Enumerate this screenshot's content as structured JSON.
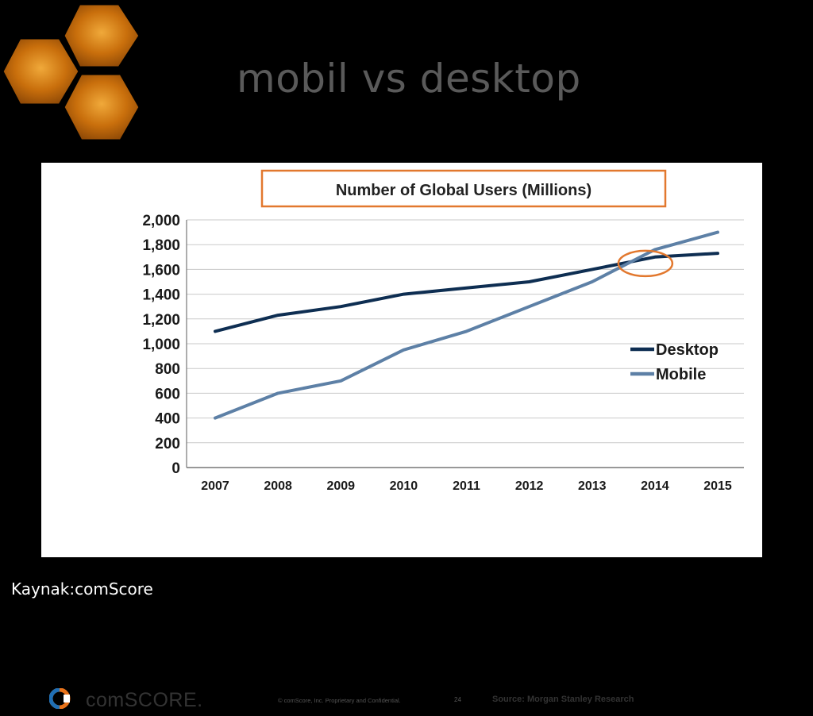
{
  "slide": {
    "title": "mobil vs desktop",
    "caption": "Kaynak:comScore"
  },
  "colors": {
    "hex_fill": "#d07f10",
    "desktop_line": "#0e2e52",
    "mobile_line": "#5d80a6",
    "highlight_circle": "#e2782e",
    "title_box_border": "#e2782e"
  },
  "chart_data": {
    "type": "line",
    "title": "Number of Global Users (Millions)",
    "xlabel": "",
    "ylabel": "",
    "categories": [
      "2007",
      "2008",
      "2009",
      "2010",
      "2011",
      "2012",
      "2013",
      "2014",
      "2015"
    ],
    "ylim": [
      0,
      2000
    ],
    "yticks": [
      0,
      200,
      400,
      600,
      800,
      1000,
      1200,
      1400,
      1600,
      1800,
      2000
    ],
    "ytick_labels": [
      "0",
      "200",
      "400",
      "600",
      "800",
      "1,000",
      "1,200",
      "1,400",
      "1,600",
      "1,800",
      "2,000"
    ],
    "series": [
      {
        "name": "Desktop",
        "values": [
          1100,
          1230,
          1300,
          1400,
          1450,
          1500,
          1600,
          1700,
          1730
        ]
      },
      {
        "name": "Mobile",
        "values": [
          400,
          600,
          700,
          950,
          1100,
          1300,
          1500,
          1760,
          1900
        ]
      }
    ],
    "grid": true,
    "legend": "right",
    "annotation": {
      "type": "circle",
      "x": "2014",
      "y": 1680,
      "note": "crossover"
    }
  },
  "footer": {
    "brand": "comSCORE.",
    "copyright": "© comScore, Inc.  Proprietary and Confidential.",
    "page_number": "24",
    "source": "Source: Morgan Stanley Research"
  }
}
